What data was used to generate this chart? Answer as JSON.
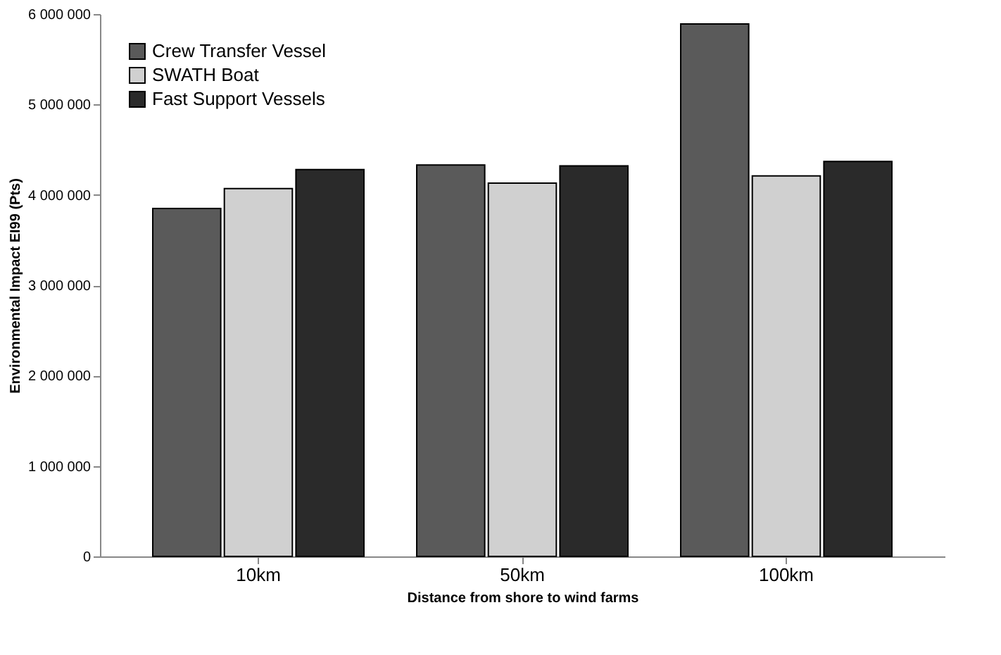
{
  "chart_data": {
    "type": "bar",
    "xlabel": "Distance from shore to wind farms",
    "ylabel": "Environmental Impact EI99 (Pts)",
    "categories": [
      "10km",
      "50km",
      "100km"
    ],
    "series": [
      {
        "name": "Crew Transfer Vessel",
        "color": "#5a5a5a",
        "values": [
          3850000,
          4330000,
          5890000
        ]
      },
      {
        "name": "SWATH Boat",
        "color": "#d0d0d0",
        "values": [
          4070000,
          4130000,
          4210000
        ]
      },
      {
        "name": "Fast Support Vessels",
        "color": "#2a2a2a",
        "values": [
          4280000,
          4320000,
          4370000
        ]
      }
    ],
    "ylim": [
      0,
      6000000
    ],
    "yticks": [
      {
        "value": 0,
        "label": "0"
      },
      {
        "value": 1000000,
        "label": "1 000 000"
      },
      {
        "value": 2000000,
        "label": "2 000 000"
      },
      {
        "value": 3000000,
        "label": "3 000 000"
      },
      {
        "value": 4000000,
        "label": "4 000 000"
      },
      {
        "value": 5000000,
        "label": "5 000 000"
      },
      {
        "value": 6000000,
        "label": "6 000 000"
      }
    ],
    "grid": false,
    "legend": "top left"
  }
}
